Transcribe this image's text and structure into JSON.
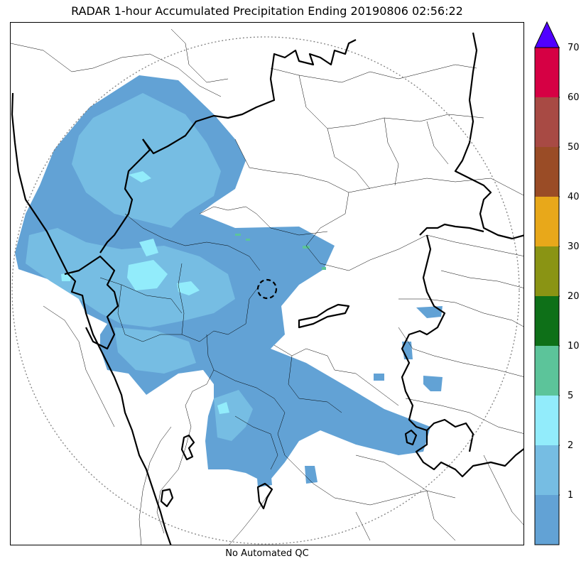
{
  "title": "RADAR 1-hour Accumulated Precipitation Ending 20190806 02:56:22",
  "caption": "No Automated QC",
  "colorbar": {
    "labels": [
      "1",
      "2",
      "5",
      "10",
      "20",
      "30",
      "40",
      "50",
      "60",
      "70"
    ],
    "bins": [
      {
        "color": "#62a2d5"
      },
      {
        "color": "#76bde3"
      },
      {
        "color": "#92ecfb"
      },
      {
        "color": "#5cc49a"
      },
      {
        "color": "#0e7018"
      },
      {
        "color": "#8a9414"
      },
      {
        "color": "#e8a81a"
      },
      {
        "color": "#9a4c26"
      },
      {
        "color": "#a84a44"
      },
      {
        "color": "#d60044"
      }
    ],
    "extend_color": "#5000ff"
  },
  "colors": {
    "light_rain": "#62a2d5",
    "moderate_rain": "#76bde3",
    "heavy_rain": "#92ecfb",
    "boundary": "#000000",
    "range_ring": "#808080"
  }
}
